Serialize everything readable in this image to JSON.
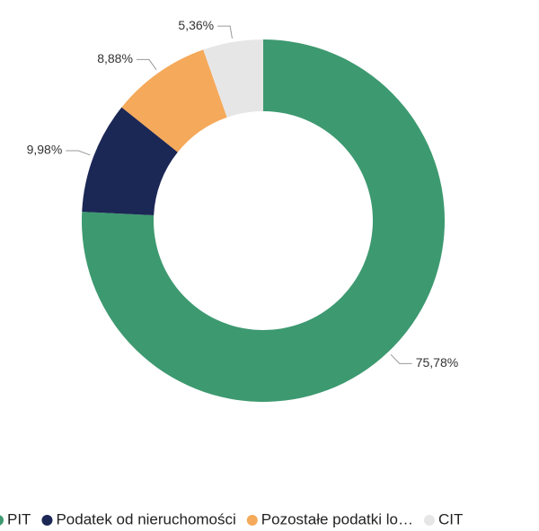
{
  "chart_data": {
    "type": "donut",
    "categories": [
      "PIT",
      "Podatek od nieruchomości",
      "Pozostałe podatki lo…",
      "CIT"
    ],
    "values": [
      75.78,
      9.98,
      8.88,
      5.36
    ],
    "value_labels": [
      "75,78%",
      "9,98%",
      "8,88%",
      "5,36%"
    ],
    "colors": [
      "#3d9970",
      "#1b2755",
      "#f5a95a",
      "#e6e6e6"
    ],
    "legend": "bottom"
  }
}
